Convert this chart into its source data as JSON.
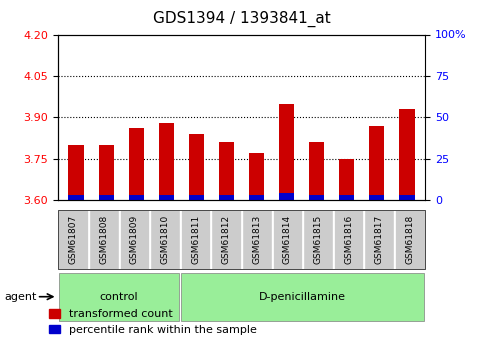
{
  "title": "GDS1394 / 1393841_at",
  "samples": [
    "GSM61807",
    "GSM61808",
    "GSM61809",
    "GSM61810",
    "GSM61811",
    "GSM61812",
    "GSM61813",
    "GSM61814",
    "GSM61815",
    "GSM61816",
    "GSM61817",
    "GSM61818"
  ],
  "red_values": [
    3.8,
    3.8,
    3.86,
    3.88,
    3.84,
    3.81,
    3.77,
    3.95,
    3.81,
    3.75,
    3.87,
    3.93
  ],
  "blue_values": [
    0.018,
    0.018,
    0.018,
    0.018,
    0.018,
    0.018,
    0.018,
    0.025,
    0.018,
    0.018,
    0.018,
    0.018
  ],
  "ylim_left": [
    3.6,
    4.2
  ],
  "ylim_right": [
    0,
    100
  ],
  "yticks_left": [
    3.6,
    3.75,
    3.9,
    4.05,
    4.2
  ],
  "yticks_right": [
    0,
    25,
    50,
    75,
    100
  ],
  "grid_values": [
    3.75,
    3.9,
    4.05
  ],
  "bar_color_red": "#cc0000",
  "bar_color_blue": "#0000cc",
  "bar_width": 0.5,
  "control_label": "control",
  "treatment_label": "D-penicillamine",
  "agent_label": "agent",
  "legend_red": "transformed count",
  "legend_blue": "percentile rank within the sample",
  "group_bg_color": "#99ee99",
  "tick_bg_color": "#cccccc",
  "title_fontsize": 11,
  "axis_fontsize": 8,
  "legend_fontsize": 8
}
